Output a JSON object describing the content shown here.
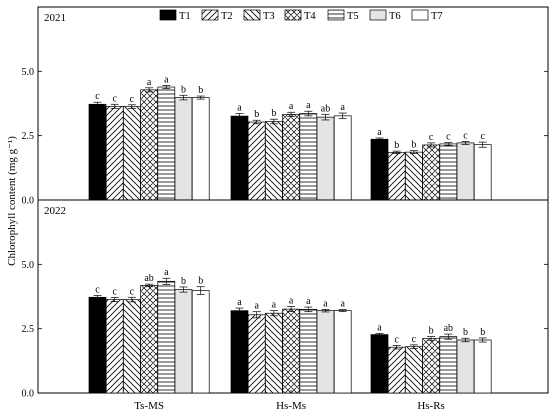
{
  "chart_data": {
    "type": "bar",
    "ylabel": "Chlorophyll content (mg g⁻¹)",
    "ylim": [
      0,
      7.5
    ],
    "yticks": [
      "0.0",
      "2.5",
      "5.0"
    ],
    "categories": [
      "Ts-MS",
      "Hs-Ms",
      "Hs-Rs"
    ],
    "legend": [
      "T1",
      "T2",
      "T3",
      "T4",
      "T5",
      "T6",
      "T7"
    ],
    "legend_position": "top",
    "treatment_fills": [
      "solid-black",
      "diagonal-forward",
      "diagonal-back",
      "crosshatch",
      "horizontal-lines",
      "light-gray",
      "white"
    ],
    "panels": [
      {
        "year": "2021",
        "groups": [
          {
            "category": "Ts-MS",
            "values": [
              3.72,
              3.64,
              3.63,
              4.28,
              4.39,
              3.98,
              3.98
            ],
            "errors": [
              0.08,
              0.08,
              0.07,
              0.08,
              0.06,
              0.09,
              0.06
            ],
            "letters": [
              "c",
              "c",
              "c",
              "a",
              "a",
              "b",
              "b"
            ]
          },
          {
            "category": "Hs-Ms",
            "values": [
              3.26,
              3.03,
              3.05,
              3.33,
              3.36,
              3.22,
              3.27
            ],
            "errors": [
              0.1,
              0.07,
              0.09,
              0.08,
              0.09,
              0.11,
              0.11
            ],
            "letters": [
              "a",
              "b",
              "b",
              "a",
              "a",
              "ab",
              "a"
            ]
          },
          {
            "category": "Hs-Rs",
            "values": [
              2.36,
              1.85,
              1.86,
              2.14,
              2.18,
              2.22,
              2.15
            ],
            "errors": [
              0.05,
              0.05,
              0.06,
              0.08,
              0.05,
              0.06,
              0.1
            ],
            "letters": [
              "a",
              "b",
              "b",
              "c",
              "c",
              "c",
              "c"
            ]
          }
        ]
      },
      {
        "year": "2022",
        "groups": [
          {
            "category": "Ts-MS",
            "values": [
              3.72,
              3.63,
              3.63,
              4.18,
              4.34,
              4.02,
              3.98
            ],
            "errors": [
              0.07,
              0.08,
              0.09,
              0.05,
              0.12,
              0.1,
              0.15
            ],
            "letters": [
              "c",
              "c",
              "c",
              "ab",
              "a",
              "b",
              "b"
            ]
          },
          {
            "category": "Hs-Ms",
            "values": [
              3.2,
              3.04,
              3.1,
              3.26,
              3.25,
              3.2,
              3.2
            ],
            "errors": [
              0.1,
              0.12,
              0.1,
              0.1,
              0.09,
              0.05,
              0.04
            ],
            "letters": [
              "a",
              "a",
              "a",
              "a",
              "a",
              "a",
              "a"
            ]
          },
          {
            "category": "Hs-Rs",
            "values": [
              2.27,
              1.78,
              1.8,
              2.12,
              2.19,
              2.06,
              2.06
            ],
            "errors": [
              0.05,
              0.07,
              0.07,
              0.07,
              0.1,
              0.07,
              0.08
            ],
            "letters": [
              "a",
              "c",
              "c",
              "b",
              "ab",
              "b",
              "b"
            ]
          }
        ]
      }
    ]
  }
}
